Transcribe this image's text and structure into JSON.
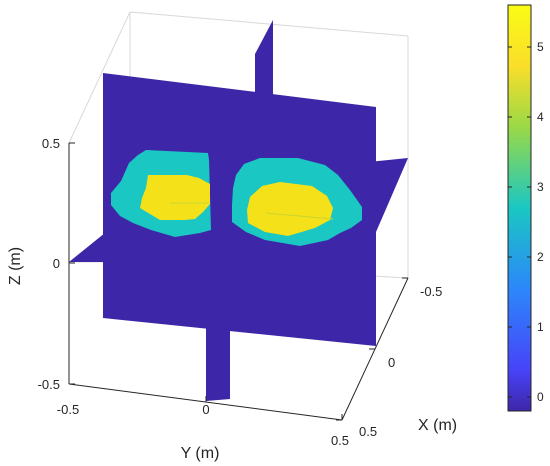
{
  "chart_data": {
    "type": "heatmap",
    "subtype": "3d-orthogonal-slices",
    "xlabel": "X (m)",
    "ylabel": "Y (m)",
    "zlabel": "Z (m)",
    "x_ticks": [
      "-0.5",
      "0",
      "0.5"
    ],
    "y_ticks": [
      "-0.5",
      "0",
      "0.5"
    ],
    "z_ticks": [
      "-0.5",
      "0",
      "0.5"
    ],
    "x_range": [
      -0.5,
      0.5
    ],
    "y_range": [
      -0.5,
      0.5
    ],
    "z_range": [
      -0.5,
      0.5
    ],
    "colorbar": {
      "ticks": [
        "0",
        "1",
        "2",
        "3",
        "4",
        "5"
      ],
      "range": [
        -0.2,
        5.6
      ],
      "colormap": "parula",
      "colors": [
        "#3e26a8",
        "#4743f8",
        "#2c87fa",
        "#1ac7c2",
        "#9bd946",
        "#fade2a",
        "#f9fb15"
      ]
    },
    "slices": [
      {
        "plane": "y=0",
        "background_value": 0
      },
      {
        "plane": "x=0",
        "background_value": 0
      },
      {
        "plane": "z=0.2",
        "background_value": 0
      }
    ],
    "regions": [
      {
        "name": "",
        "y_center": -0.25,
        "z_center": 0.2,
        "outer_value": 2.3,
        "inner_value": 5.6
      },
      {
        "name": "",
        "y_center": 0.2,
        "z_center": 0.2,
        "outer_value": 2.3,
        "inner_value": 5.6
      }
    ],
    "grid": false
  }
}
